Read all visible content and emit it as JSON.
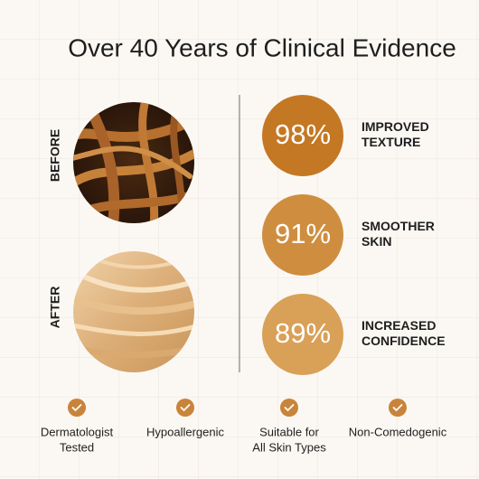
{
  "title": "Over 40 Years of Clinical Evidence",
  "before_label": "BEFORE",
  "after_label": "AFTER",
  "stats": [
    {
      "value": "98%",
      "label": [
        "IMPROVED",
        "TEXTURE"
      ]
    },
    {
      "value": "91%",
      "label": [
        "SMOOTHER",
        "SKIN"
      ]
    },
    {
      "value": "89%",
      "label": [
        "INCREASED",
        "CONFIDENCE"
      ]
    }
  ],
  "features": [
    [
      "Dermatologist",
      "Tested"
    ],
    [
      "Hypoallergenic"
    ],
    [
      "Suitable for",
      "All Skin Types"
    ],
    [
      "Non-Comedogenic"
    ]
  ]
}
